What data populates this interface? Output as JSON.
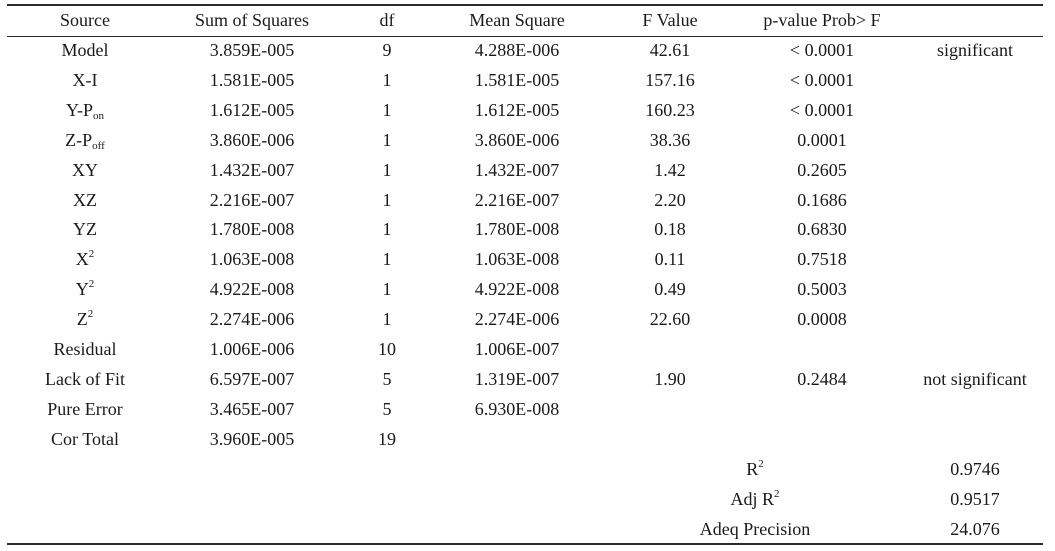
{
  "headers": {
    "source": "Source",
    "ss": "Sum of Squares",
    "df": "df",
    "ms": "Mean Square",
    "f": "F Value",
    "p": "p-value Prob> F"
  },
  "rows": [
    {
      "src_main": "Model",
      "ss": "3.859E-005",
      "df": "9",
      "ms": "4.288E-006",
      "f": "42.61",
      "p": "< 0.0001",
      "note": "significant"
    },
    {
      "src_main": "X-I",
      "ss": "1.581E-005",
      "df": "1",
      "ms": "1.581E-005",
      "f": "157.16",
      "p": "< 0.0001",
      "note": ""
    },
    {
      "src_main": "Y-P",
      "src_sub": "on",
      "ss": "1.612E-005",
      "df": "1",
      "ms": "1.612E-005",
      "f": "160.23",
      "p": "< 0.0001",
      "note": ""
    },
    {
      "src_main": "Z-P",
      "src_sub": "off",
      "ss": "3.860E-006",
      "df": "1",
      "ms": "3.860E-006",
      "f": "38.36",
      "p": "0.0001",
      "note": ""
    },
    {
      "src_main": "XY",
      "ss": "1.432E-007",
      "df": "1",
      "ms": "1.432E-007",
      "f": "1.42",
      "p": "0.2605",
      "note": ""
    },
    {
      "src_main": "XZ",
      "ss": "2.216E-007",
      "df": "1",
      "ms": "2.216E-007",
      "f": "2.20",
      "p": "0.1686",
      "note": ""
    },
    {
      "src_main": "YZ",
      "ss": "1.780E-008",
      "df": "1",
      "ms": "1.780E-008",
      "f": "0.18",
      "p": "0.6830",
      "note": ""
    },
    {
      "src_main": "X",
      "src_sup": "2",
      "ss": "1.063E-008",
      "df": "1",
      "ms": "1.063E-008",
      "f": "0.11",
      "p": "0.7518",
      "note": ""
    },
    {
      "src_main": "Y",
      "src_sup": "2",
      "ss": "4.922E-008",
      "df": "1",
      "ms": "4.922E-008",
      "f": "0.49",
      "p": "0.5003",
      "note": ""
    },
    {
      "src_main": "Z",
      "src_sup": "2",
      "ss": "2.274E-006",
      "df": "1",
      "ms": "2.274E-006",
      "f": "22.60",
      "p": "0.0008",
      "note": ""
    },
    {
      "src_main": "Residual",
      "ss": "1.006E-006",
      "df": "10",
      "ms": "1.006E-007",
      "f": "",
      "p": "",
      "note": ""
    },
    {
      "src_main": "Lack of Fit",
      "ss": "6.597E-007",
      "df": "5",
      "ms": "1.319E-007",
      "f": "1.90",
      "p": "0.2484",
      "note": "not significant"
    },
    {
      "src_main": "Pure Error",
      "ss": "3.465E-007",
      "df": "5",
      "ms": "6.930E-008",
      "f": "",
      "p": "",
      "note": ""
    },
    {
      "src_main": "Cor Total",
      "ss": "3.960E-005",
      "df": "19",
      "ms": "",
      "f": "",
      "p": "",
      "note": ""
    }
  ],
  "stats": [
    {
      "label_main": "R",
      "label_sup": "2",
      "value": "0.9746"
    },
    {
      "label_main": "Adj R",
      "label_sup": "2",
      "value": "0.9517"
    },
    {
      "label_main": "Adeq Precision",
      "value": "24.076"
    }
  ]
}
